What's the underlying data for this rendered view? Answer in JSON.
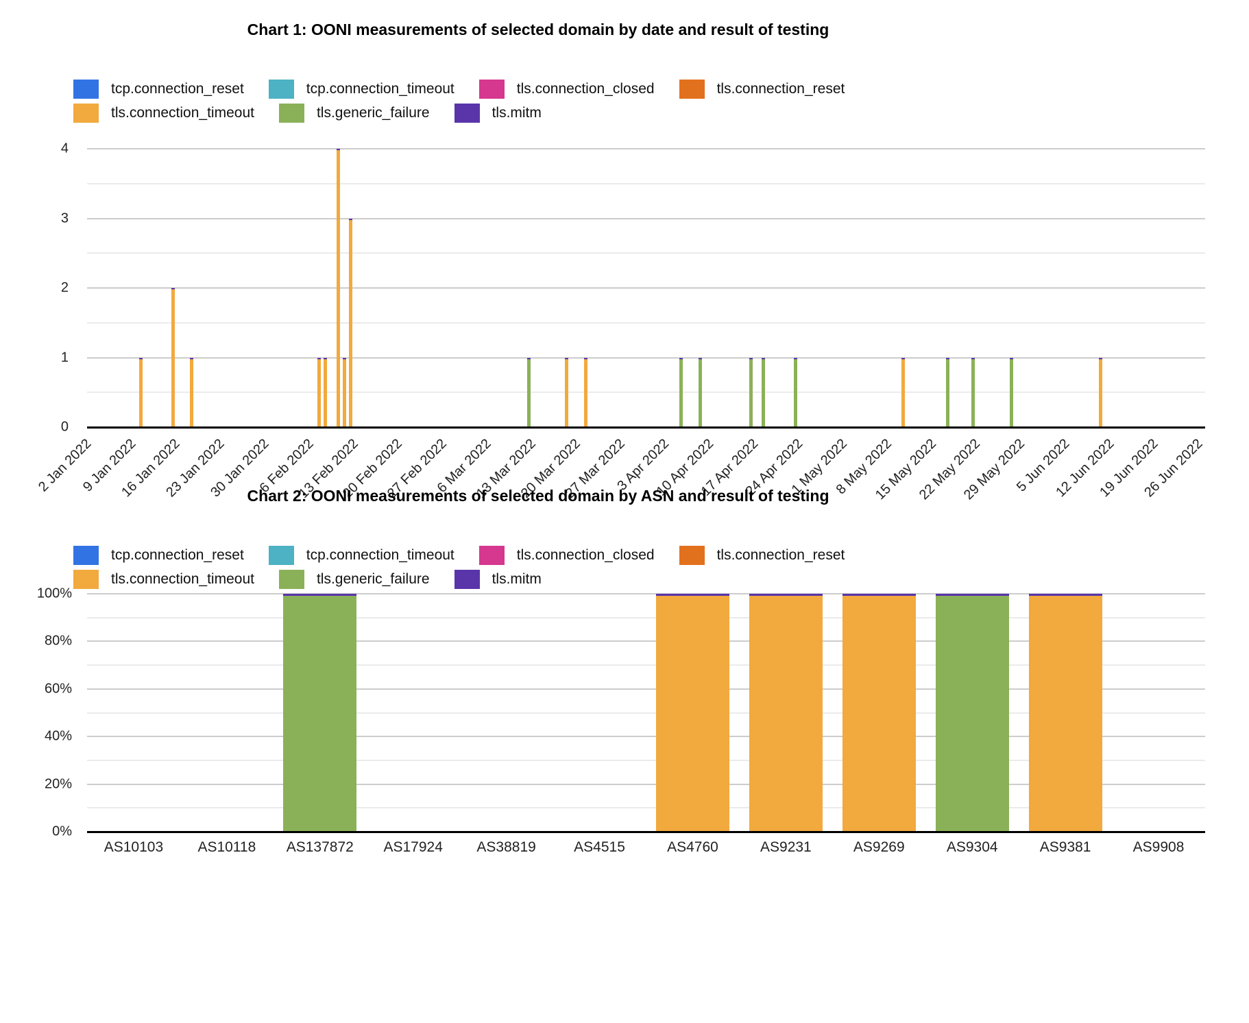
{
  "charts_common": {
    "legend": [
      {
        "label": "tcp.connection_reset",
        "color": "#3273E3"
      },
      {
        "label": "tcp.connection_timeout",
        "color": "#4CB2C4"
      },
      {
        "label": "tls.connection_closed",
        "color": "#D6378F"
      },
      {
        "label": "tls.connection_reset",
        "color": "#E2711E"
      },
      {
        "label": "tls.connection_timeout",
        "color": "#F2A93D"
      },
      {
        "label": "tls.generic_failure",
        "color": "#8BB158"
      },
      {
        "label": "tls.mitm",
        "color": "#5935A9"
      }
    ],
    "legend_rows": [
      [
        0,
        1,
        2,
        3
      ],
      [
        4,
        5,
        6
      ]
    ],
    "grid_major_color": "#cccccc",
    "grid_minor_color": "#ebebeb",
    "baseline_color": "#000000"
  },
  "chart_data": [
    {
      "type": "bar",
      "title": "Chart 1: OONI measurements of selected domain by date and result of testing",
      "x_axis": {
        "kind": "daily-dates",
        "start": "2022-01-02",
        "end": "2022-06-26",
        "tick_labels": [
          "2 Jan 2022",
          "9 Jan 2022",
          "16 Jan 2022",
          "23 Jan 2022",
          "30 Jan 2022",
          "6 Feb 2022",
          "13 Feb 2022",
          "20 Feb 2022",
          "27 Feb 2022",
          "6 Mar 2022",
          "13 Mar 2022",
          "20 Mar 2022",
          "27 Mar 2022",
          "3 Apr 2022",
          "10 Apr 2022",
          "17 Apr 2022",
          "24 Apr 2022",
          "1 May 2022",
          "8 May 2022",
          "15 May 2022",
          "22 May 2022",
          "29 May 2022",
          "5 Jun 2022",
          "12 Jun 2022",
          "19 Jun 2022",
          "26 Jun 2022"
        ]
      },
      "y_axis": {
        "min": 0,
        "max": 4,
        "tick_labels": [
          "0",
          "1",
          "2",
          "3",
          "4"
        ]
      },
      "legend_position": "top",
      "grid": true,
      "bars": [
        {
          "date": "2022-01-10",
          "series": "tls.connection_timeout",
          "value": 1
        },
        {
          "date": "2022-01-15",
          "series": "tls.connection_timeout",
          "value": 2
        },
        {
          "date": "2022-01-18",
          "series": "tls.connection_timeout",
          "value": 1
        },
        {
          "date": "2022-02-07",
          "series": "tls.connection_timeout",
          "value": 1
        },
        {
          "date": "2022-02-08",
          "series": "tls.connection_timeout",
          "value": 1
        },
        {
          "date": "2022-02-10",
          "series": "tls.connection_timeout",
          "value": 4
        },
        {
          "date": "2022-02-11",
          "series": "tls.connection_timeout",
          "value": 1
        },
        {
          "date": "2022-02-12",
          "series": "tls.connection_timeout",
          "value": 3
        },
        {
          "date": "2022-03-12",
          "series": "tls.generic_failure",
          "value": 1
        },
        {
          "date": "2022-03-18",
          "series": "tls.connection_timeout",
          "value": 1
        },
        {
          "date": "2022-03-21",
          "series": "tls.connection_timeout",
          "value": 1
        },
        {
          "date": "2022-04-05",
          "series": "tls.generic_failure",
          "value": 1
        },
        {
          "date": "2022-04-08",
          "series": "tls.generic_failure",
          "value": 1
        },
        {
          "date": "2022-04-16",
          "series": "tls.generic_failure",
          "value": 1
        },
        {
          "date": "2022-04-18",
          "series": "tls.generic_failure",
          "value": 1
        },
        {
          "date": "2022-04-23",
          "series": "tls.generic_failure",
          "value": 1
        },
        {
          "date": "2022-05-10",
          "series": "tls.connection_timeout",
          "value": 1
        },
        {
          "date": "2022-05-17",
          "series": "tls.generic_failure",
          "value": 1
        },
        {
          "date": "2022-05-21",
          "series": "tls.generic_failure",
          "value": 1
        },
        {
          "date": "2022-05-27",
          "series": "tls.generic_failure",
          "value": 1
        },
        {
          "date": "2022-06-10",
          "series": "tls.connection_timeout",
          "value": 1
        }
      ],
      "mitm_cap_on_bars": true
    },
    {
      "type": "bar-stacked-100",
      "title": "Chart 2: OONI measurements of selected domain by ASN and result of testing",
      "categories": [
        "AS10103",
        "AS10118",
        "AS137872",
        "AS17924",
        "AS38819",
        "AS4515",
        "AS4760",
        "AS9231",
        "AS9269",
        "AS9304",
        "AS9381",
        "AS9908"
      ],
      "y_axis": {
        "min": 0,
        "max": 100,
        "tick_labels": [
          "0%",
          "20%",
          "40%",
          "60%",
          "80%",
          "100%"
        ]
      },
      "legend_position": "top",
      "grid": true,
      "bars": [
        {
          "category": "AS137872",
          "series": "tls.generic_failure",
          "value_pct": 100
        },
        {
          "category": "AS4760",
          "series": "tls.connection_timeout",
          "value_pct": 100
        },
        {
          "category": "AS9231",
          "series": "tls.connection_timeout",
          "value_pct": 100
        },
        {
          "category": "AS9269",
          "series": "tls.connection_timeout",
          "value_pct": 100
        },
        {
          "category": "AS9304",
          "series": "tls.generic_failure",
          "value_pct": 100
        },
        {
          "category": "AS9381",
          "series": "tls.connection_timeout",
          "value_pct": 100
        }
      ],
      "mitm_cap_on_bars": true
    }
  ]
}
